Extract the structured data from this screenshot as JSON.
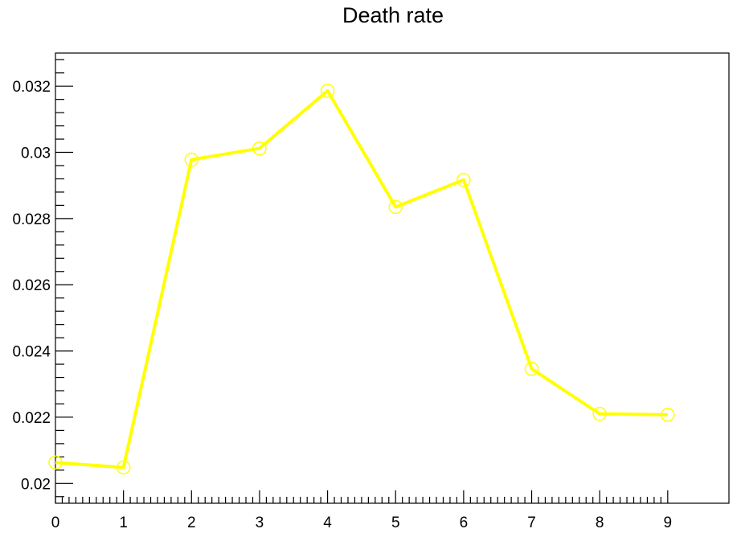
{
  "chart_data": {
    "type": "line",
    "title": "Death rate",
    "xlabel": "",
    "ylabel": "",
    "x": [
      0,
      1,
      2,
      3,
      4,
      5,
      6,
      7,
      8,
      9
    ],
    "series": [
      {
        "values": [
          0.02063,
          0.02048,
          0.02978,
          0.03012,
          0.03186,
          0.02835,
          0.02917,
          0.02346,
          0.0221,
          0.02207
        ],
        "color": "#ffff00",
        "marker": "open-circle"
      }
    ],
    "xlim": [
      0,
      9.9
    ],
    "ylim": [
      0.0194,
      0.033
    ],
    "x_ticks": [
      0,
      1,
      2,
      3,
      4,
      5,
      6,
      7,
      8,
      9
    ],
    "x_tick_labels": [
      "0",
      "1",
      "2",
      "3",
      "4",
      "5",
      "6",
      "7",
      "8",
      "9"
    ],
    "y_ticks": [
      0.02,
      0.022,
      0.024,
      0.026,
      0.028,
      0.03,
      0.032
    ],
    "y_tick_labels": [
      "0.02",
      "0.022",
      "0.024",
      "0.026",
      "0.028",
      "0.03",
      "0.032"
    ],
    "grid": false,
    "legend": "none"
  }
}
